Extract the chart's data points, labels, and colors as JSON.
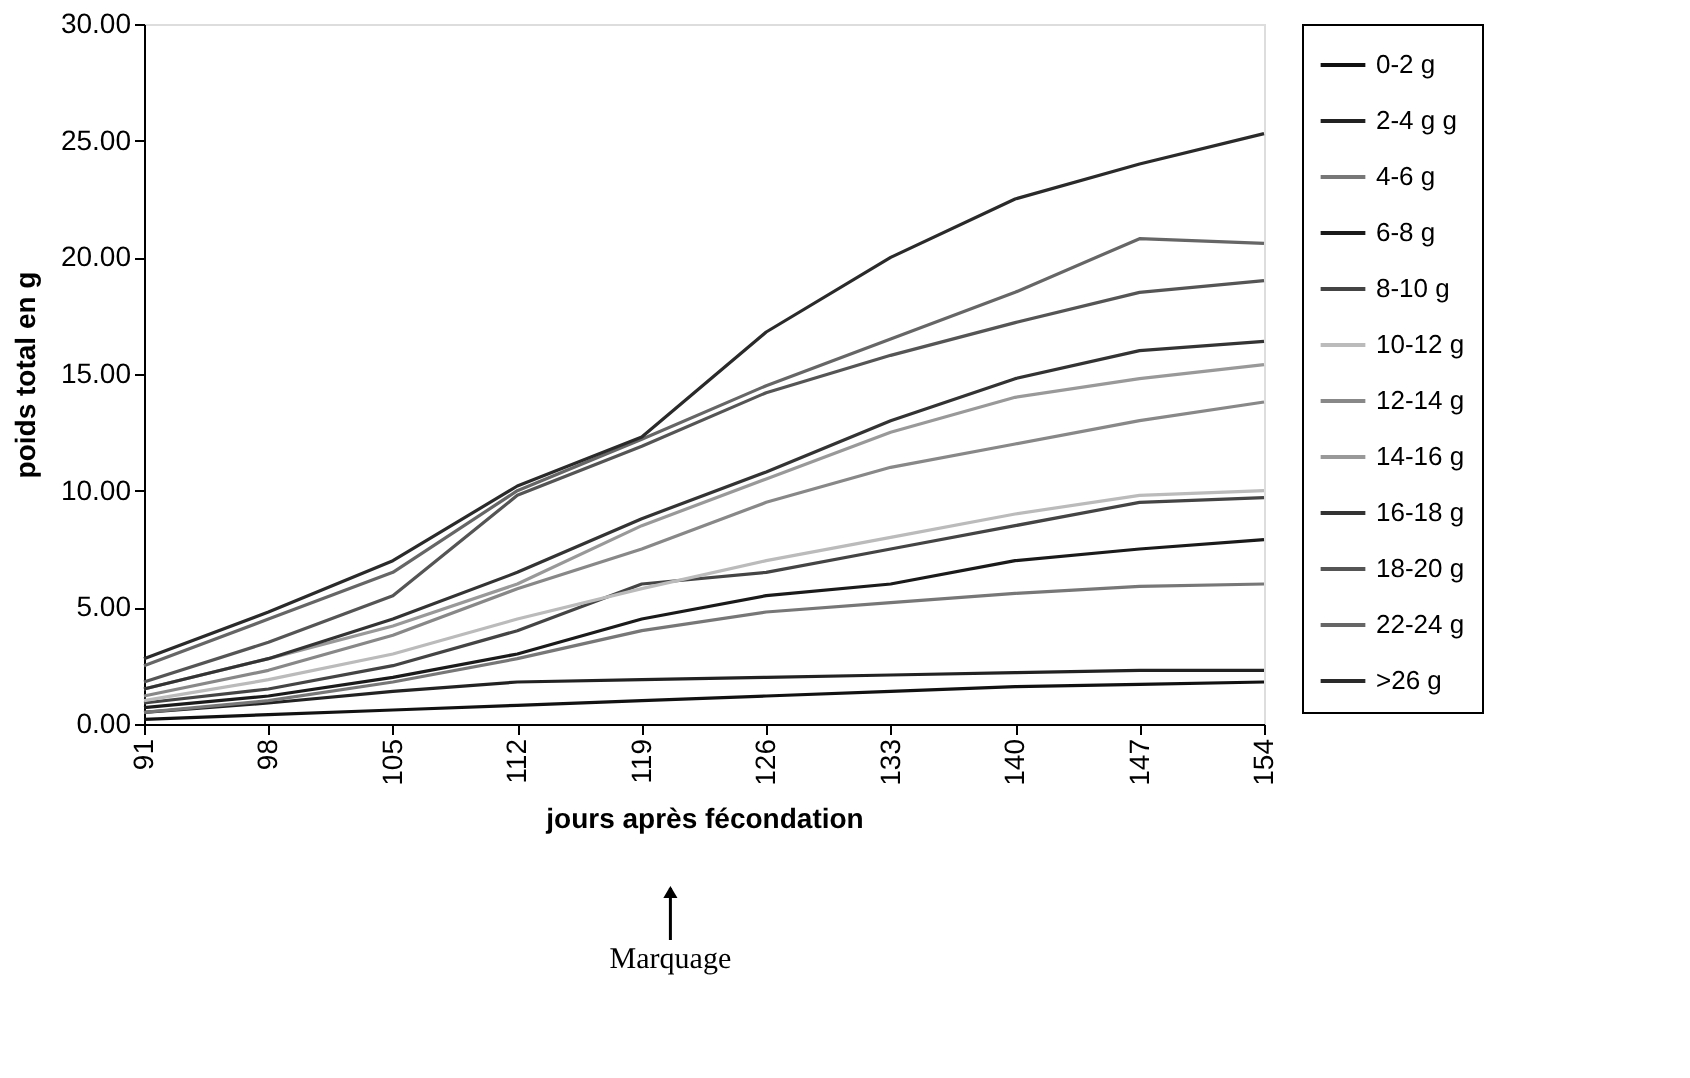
{
  "chart_data": {
    "type": "line",
    "xlabel": "jours après fécondation",
    "ylabel": "poids total en g",
    "annotations": [
      "Marquage"
    ],
    "x": [
      91,
      98,
      105,
      112,
      119,
      126,
      133,
      140,
      147,
      154
    ],
    "xlim": [
      91,
      154
    ],
    "xticks": [
      91,
      98,
      105,
      112,
      119,
      126,
      133,
      140,
      147,
      154
    ],
    "ylim": [
      0,
      30
    ],
    "yticks": [
      {
        "value": 0,
        "label": "0.00"
      },
      {
        "value": 5,
        "label": "5.00"
      },
      {
        "value": 10,
        "label": "10.00"
      },
      {
        "value": 15,
        "label": "15.00"
      },
      {
        "value": 20,
        "label": "20.00"
      },
      {
        "value": 25,
        "label": "25.00"
      },
      {
        "value": 30,
        "label": "30.00"
      }
    ],
    "grid": false,
    "legend": "right",
    "marker": "none",
    "line_style": "solid",
    "series": [
      {
        "name": "0-2 g",
        "color": "#111111",
        "values": [
          0.2,
          0.4,
          0.6,
          0.8,
          1.0,
          1.2,
          1.4,
          1.6,
          1.7,
          1.8
        ]
      },
      {
        "name": "2-4 g g",
        "color": "#222222",
        "values": [
          0.5,
          0.9,
          1.4,
          1.8,
          1.9,
          2.0,
          2.1,
          2.2,
          2.3,
          2.3
        ]
      },
      {
        "name": "4-6 g",
        "color": "#777777",
        "values": [
          0.5,
          1.0,
          1.8,
          2.8,
          4.0,
          4.8,
          5.2,
          5.6,
          5.9,
          6.0
        ]
      },
      {
        "name": "6-8 g",
        "color": "#1a1a1a",
        "values": [
          0.7,
          1.2,
          2.0,
          3.0,
          4.5,
          5.5,
          6.0,
          7.0,
          7.5,
          7.9
        ]
      },
      {
        "name": "8-10 g",
        "color": "#444444",
        "values": [
          0.9,
          1.5,
          2.5,
          4.0,
          6.0,
          6.5,
          7.5,
          8.5,
          9.5,
          9.7
        ]
      },
      {
        "name": "10-12 g",
        "color": "#bbbbbb",
        "values": [
          1.0,
          1.9,
          3.0,
          4.5,
          5.8,
          7.0,
          8.0,
          9.0,
          9.8,
          10.0
        ]
      },
      {
        "name": "12-14 g",
        "color": "#888888",
        "values": [
          1.2,
          2.3,
          3.8,
          5.8,
          7.5,
          9.5,
          11.0,
          12.0,
          13.0,
          13.8
        ]
      },
      {
        "name": "14-16 g",
        "color": "#999999",
        "values": [
          1.5,
          2.8,
          4.2,
          6.0,
          8.5,
          10.5,
          12.5,
          14.0,
          14.8,
          15.4
        ]
      },
      {
        "name": "16-18 g",
        "color": "#333333",
        "values": [
          1.5,
          2.8,
          4.5,
          6.5,
          8.8,
          10.8,
          13.0,
          14.8,
          16.0,
          16.4
        ]
      },
      {
        "name": "18-20 g",
        "color": "#555555",
        "values": [
          1.8,
          3.5,
          5.5,
          9.8,
          11.9,
          14.2,
          15.8,
          17.2,
          18.5,
          19.0
        ]
      },
      {
        "name": "22-24 g",
        "color": "#666666",
        "values": [
          2.5,
          4.5,
          6.5,
          10.0,
          12.2,
          14.5,
          16.5,
          18.5,
          20.8,
          20.6
        ]
      },
      {
        "name": ">26 g",
        "color": "#2a2a2a",
        "values": [
          2.8,
          4.8,
          7.0,
          10.2,
          12.3,
          16.8,
          20.0,
          22.5,
          24.0,
          25.3
        ]
      }
    ]
  }
}
